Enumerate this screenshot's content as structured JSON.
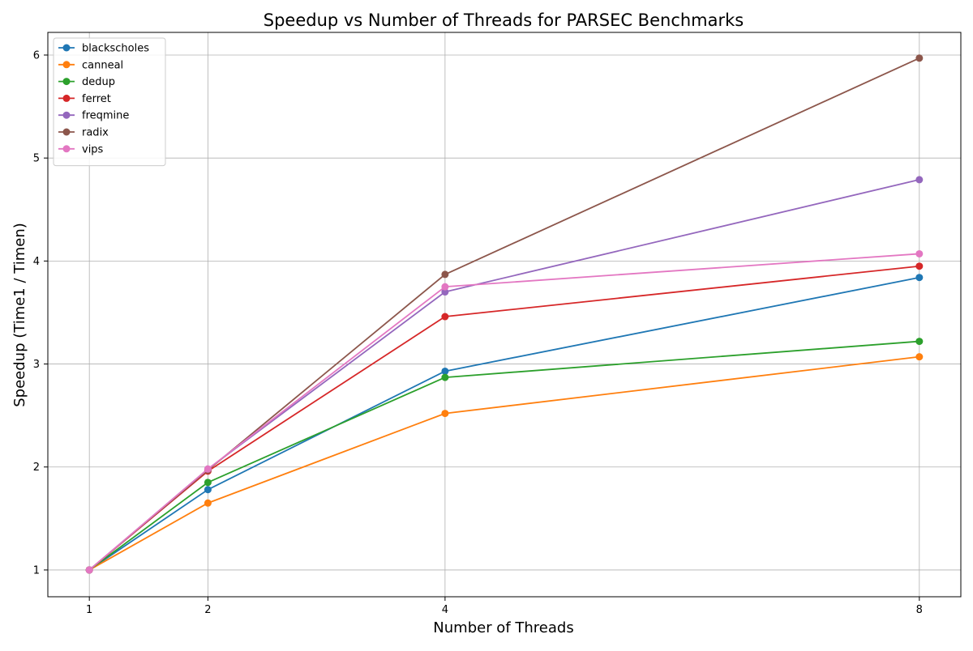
{
  "chart_data": {
    "type": "line",
    "title": "Speedup vs Number of Threads for PARSEC Benchmarks",
    "xlabel": "Number of Threads",
    "ylabel": "Speedup (Time1 / Timen)",
    "x": [
      1,
      2,
      4,
      8
    ],
    "x_ticks": [
      "1",
      "2",
      "4",
      "8"
    ],
    "y_ticks": [
      "1",
      "2",
      "3",
      "4",
      "5",
      "6"
    ],
    "xlim": [
      0.65,
      8.35
    ],
    "ylim": [
      0.74,
      6.22
    ],
    "grid": true,
    "legend_position": "top-left",
    "series": [
      {
        "name": "blackscholes",
        "color": "#1f77b4",
        "values": [
          1.0,
          1.78,
          2.93,
          3.84
        ]
      },
      {
        "name": "canneal",
        "color": "#ff7f0e",
        "values": [
          1.0,
          1.65,
          2.52,
          3.07
        ]
      },
      {
        "name": "dedup",
        "color": "#2ca02c",
        "values": [
          1.0,
          1.85,
          2.87,
          3.22
        ]
      },
      {
        "name": "ferret",
        "color": "#d62728",
        "values": [
          1.0,
          1.96,
          3.46,
          3.95
        ]
      },
      {
        "name": "freqmine",
        "color": "#9467bd",
        "values": [
          1.0,
          1.98,
          3.7,
          4.79
        ]
      },
      {
        "name": "radix",
        "color": "#8c564b",
        "values": [
          1.0,
          1.97,
          3.87,
          5.97
        ]
      },
      {
        "name": "vips",
        "color": "#e377c2",
        "values": [
          1.0,
          1.98,
          3.75,
          4.07
        ]
      }
    ]
  }
}
